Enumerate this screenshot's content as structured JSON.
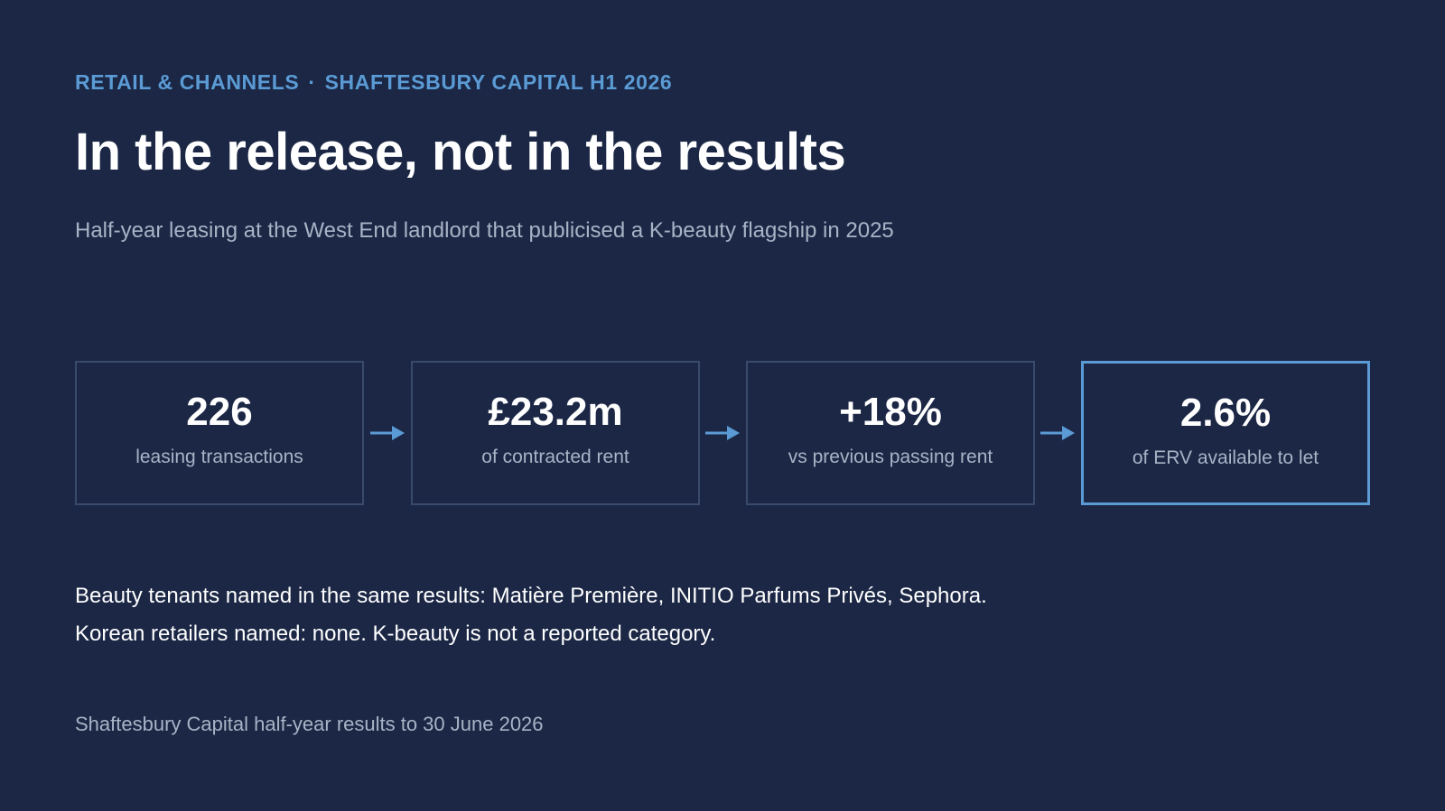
{
  "kicker": {
    "section": "RETAIL & CHANNELS",
    "separator": "·",
    "report": "SHAFTESBURY CAPITAL H1 2026"
  },
  "title": "In the release, not in the results",
  "subtitle": "Half-year leasing at the West End landlord that publicised a K-beauty flagship in 2025",
  "stats": [
    {
      "value": "226",
      "label": "leasing transactions"
    },
    {
      "value": "£23.2m",
      "label": "of contracted rent"
    },
    {
      "value": "+18%",
      "label": "vs previous passing rent"
    },
    {
      "value": "2.6%",
      "label": "of ERV available to let"
    }
  ],
  "body": {
    "line1": "Beauty tenants named in the same results: Matière Première, INITIO Parfums Privés, Sephora.",
    "line2": "Korean retailers named: none. K-beauty is not a reported category."
  },
  "source": "Shaftesbury Capital half-year results to 30 June 2026",
  "colors": {
    "background": "#1b2745",
    "accent": "#5b9bd5",
    "card_border": "#394a6b",
    "muted_text": "#a9b3c6"
  }
}
